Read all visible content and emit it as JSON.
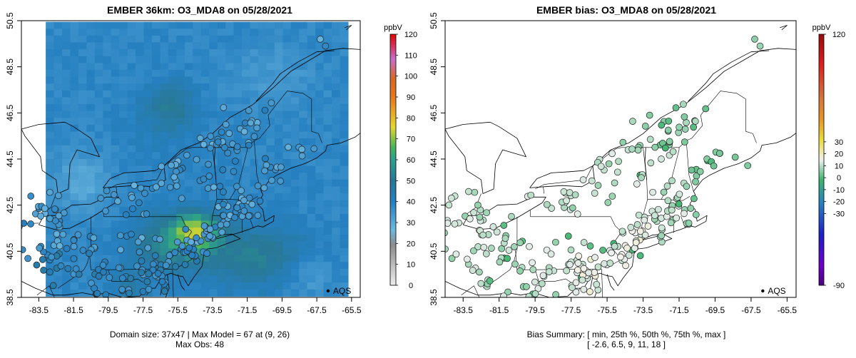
{
  "chart_data": [
    {
      "type": "heatmap",
      "title": "EMBER 36km: O3_MDA8 on 05/28/2021",
      "xlim": [
        -84.5,
        -65.0
      ],
      "ylim": [
        38.5,
        50.5
      ],
      "x_ticks": [
        "-83.5",
        "-81.5",
        "-79.5",
        "-77.5",
        "-75.5",
        "-73.5",
        "-71.5",
        "-69.5",
        "-67.5",
        "-65.5"
      ],
      "y_ticks": [
        "38.5",
        "40.5",
        "42.5",
        "44.5",
        "46.5",
        "48.5",
        "50.5"
      ],
      "colorbar": {
        "label": "ppbV",
        "range": [
          0,
          120
        ],
        "ticks": [
          "0",
          "10",
          "20",
          "30",
          "40",
          "50",
          "60",
          "70",
          "80",
          "90",
          "100",
          "110",
          "120"
        ]
      },
      "legend": "AQS",
      "footer": [
        "Domain size: 37x47 | Max Model = 67 at (9, 26)",
        "Max Obs: 48"
      ]
    },
    {
      "type": "scatter",
      "title": "EMBER bias: O3_MDA8 on 05/28/2021",
      "xlim": [
        -84.5,
        -65.0
      ],
      "ylim": [
        38.5,
        50.5
      ],
      "x_ticks": [
        "-83.5",
        "-81.5",
        "-79.5",
        "-77.5",
        "-75.5",
        "-73.5",
        "-71.5",
        "-69.5",
        "-67.5",
        "-65.5"
      ],
      "y_ticks": [
        "38.5",
        "40.5",
        "42.5",
        "44.5",
        "46.5",
        "48.5",
        "50.5"
      ],
      "colorbar": {
        "label": "ppbV",
        "range": [
          -90,
          120
        ],
        "ticks": [
          "-90",
          "-30",
          "-20",
          "-10",
          "0",
          "10",
          "20",
          "30",
          "120"
        ]
      },
      "legend": "AQS",
      "footer": [
        "Bias Summary: [ min, 25th %, 50th %, 75th %, max ]",
        "[ -2.6,   6.5,   9,   11,   18 ]"
      ],
      "bias_summary": {
        "min": -2.6,
        "p25": 6.5,
        "p50": 9,
        "p75": 11,
        "max": 18
      }
    }
  ]
}
